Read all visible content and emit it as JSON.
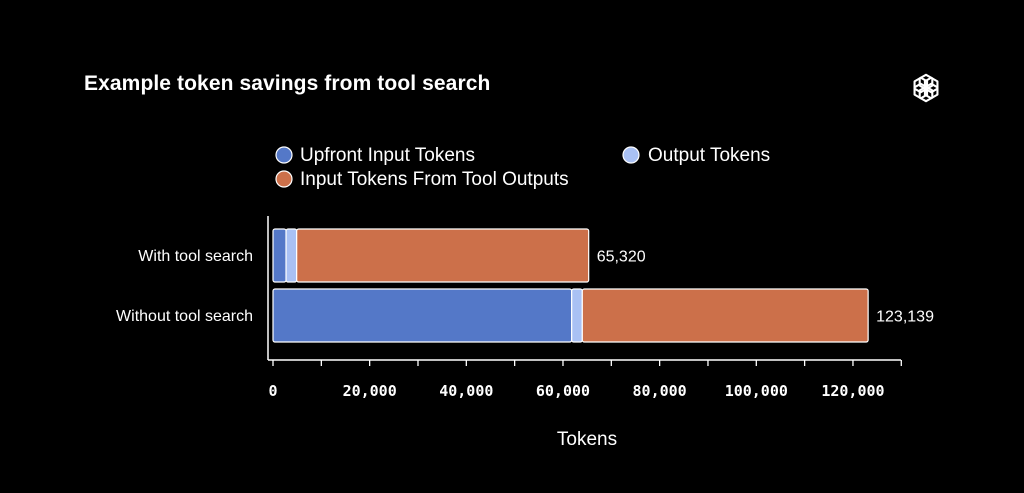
{
  "title": "Example token savings from tool search",
  "logo_icon": "openai-logo-icon",
  "colors": {
    "background": "#000000",
    "upfront": "#5478c8",
    "output": "#a9c1f4",
    "tool_outputs": "#cc704a",
    "axis": "#ffffff",
    "bar_border": "#ffffff"
  },
  "chart_data": {
    "type": "bar",
    "orientation": "horizontal",
    "stacked": true,
    "title": "Example token savings from tool search",
    "xlabel": "Tokens",
    "ylabel": "",
    "xlim": [
      0,
      130000
    ],
    "xticks": [
      0,
      20000,
      40000,
      60000,
      80000,
      100000,
      120000
    ],
    "xtick_labels": [
      "0",
      "20,000",
      "40,000",
      "60,000",
      "80,000",
      "100,000",
      "120,000"
    ],
    "grid": false,
    "legend_position": "top",
    "categories": [
      "With tool search",
      "Without tool search"
    ],
    "series": [
      {
        "name": "Upfront Input Tokens",
        "color": "#5478c8",
        "values": [
          2700,
          61800
        ]
      },
      {
        "name": "Output Tokens",
        "color": "#a9c1f4",
        "values": [
          2200,
          2200
        ]
      },
      {
        "name": "Input Tokens From Tool Outputs",
        "color": "#cc704a",
        "values": [
          60420,
          59139
        ]
      }
    ],
    "totals": [
      65320,
      123139
    ],
    "total_labels": [
      "65,320",
      "123,139"
    ]
  }
}
